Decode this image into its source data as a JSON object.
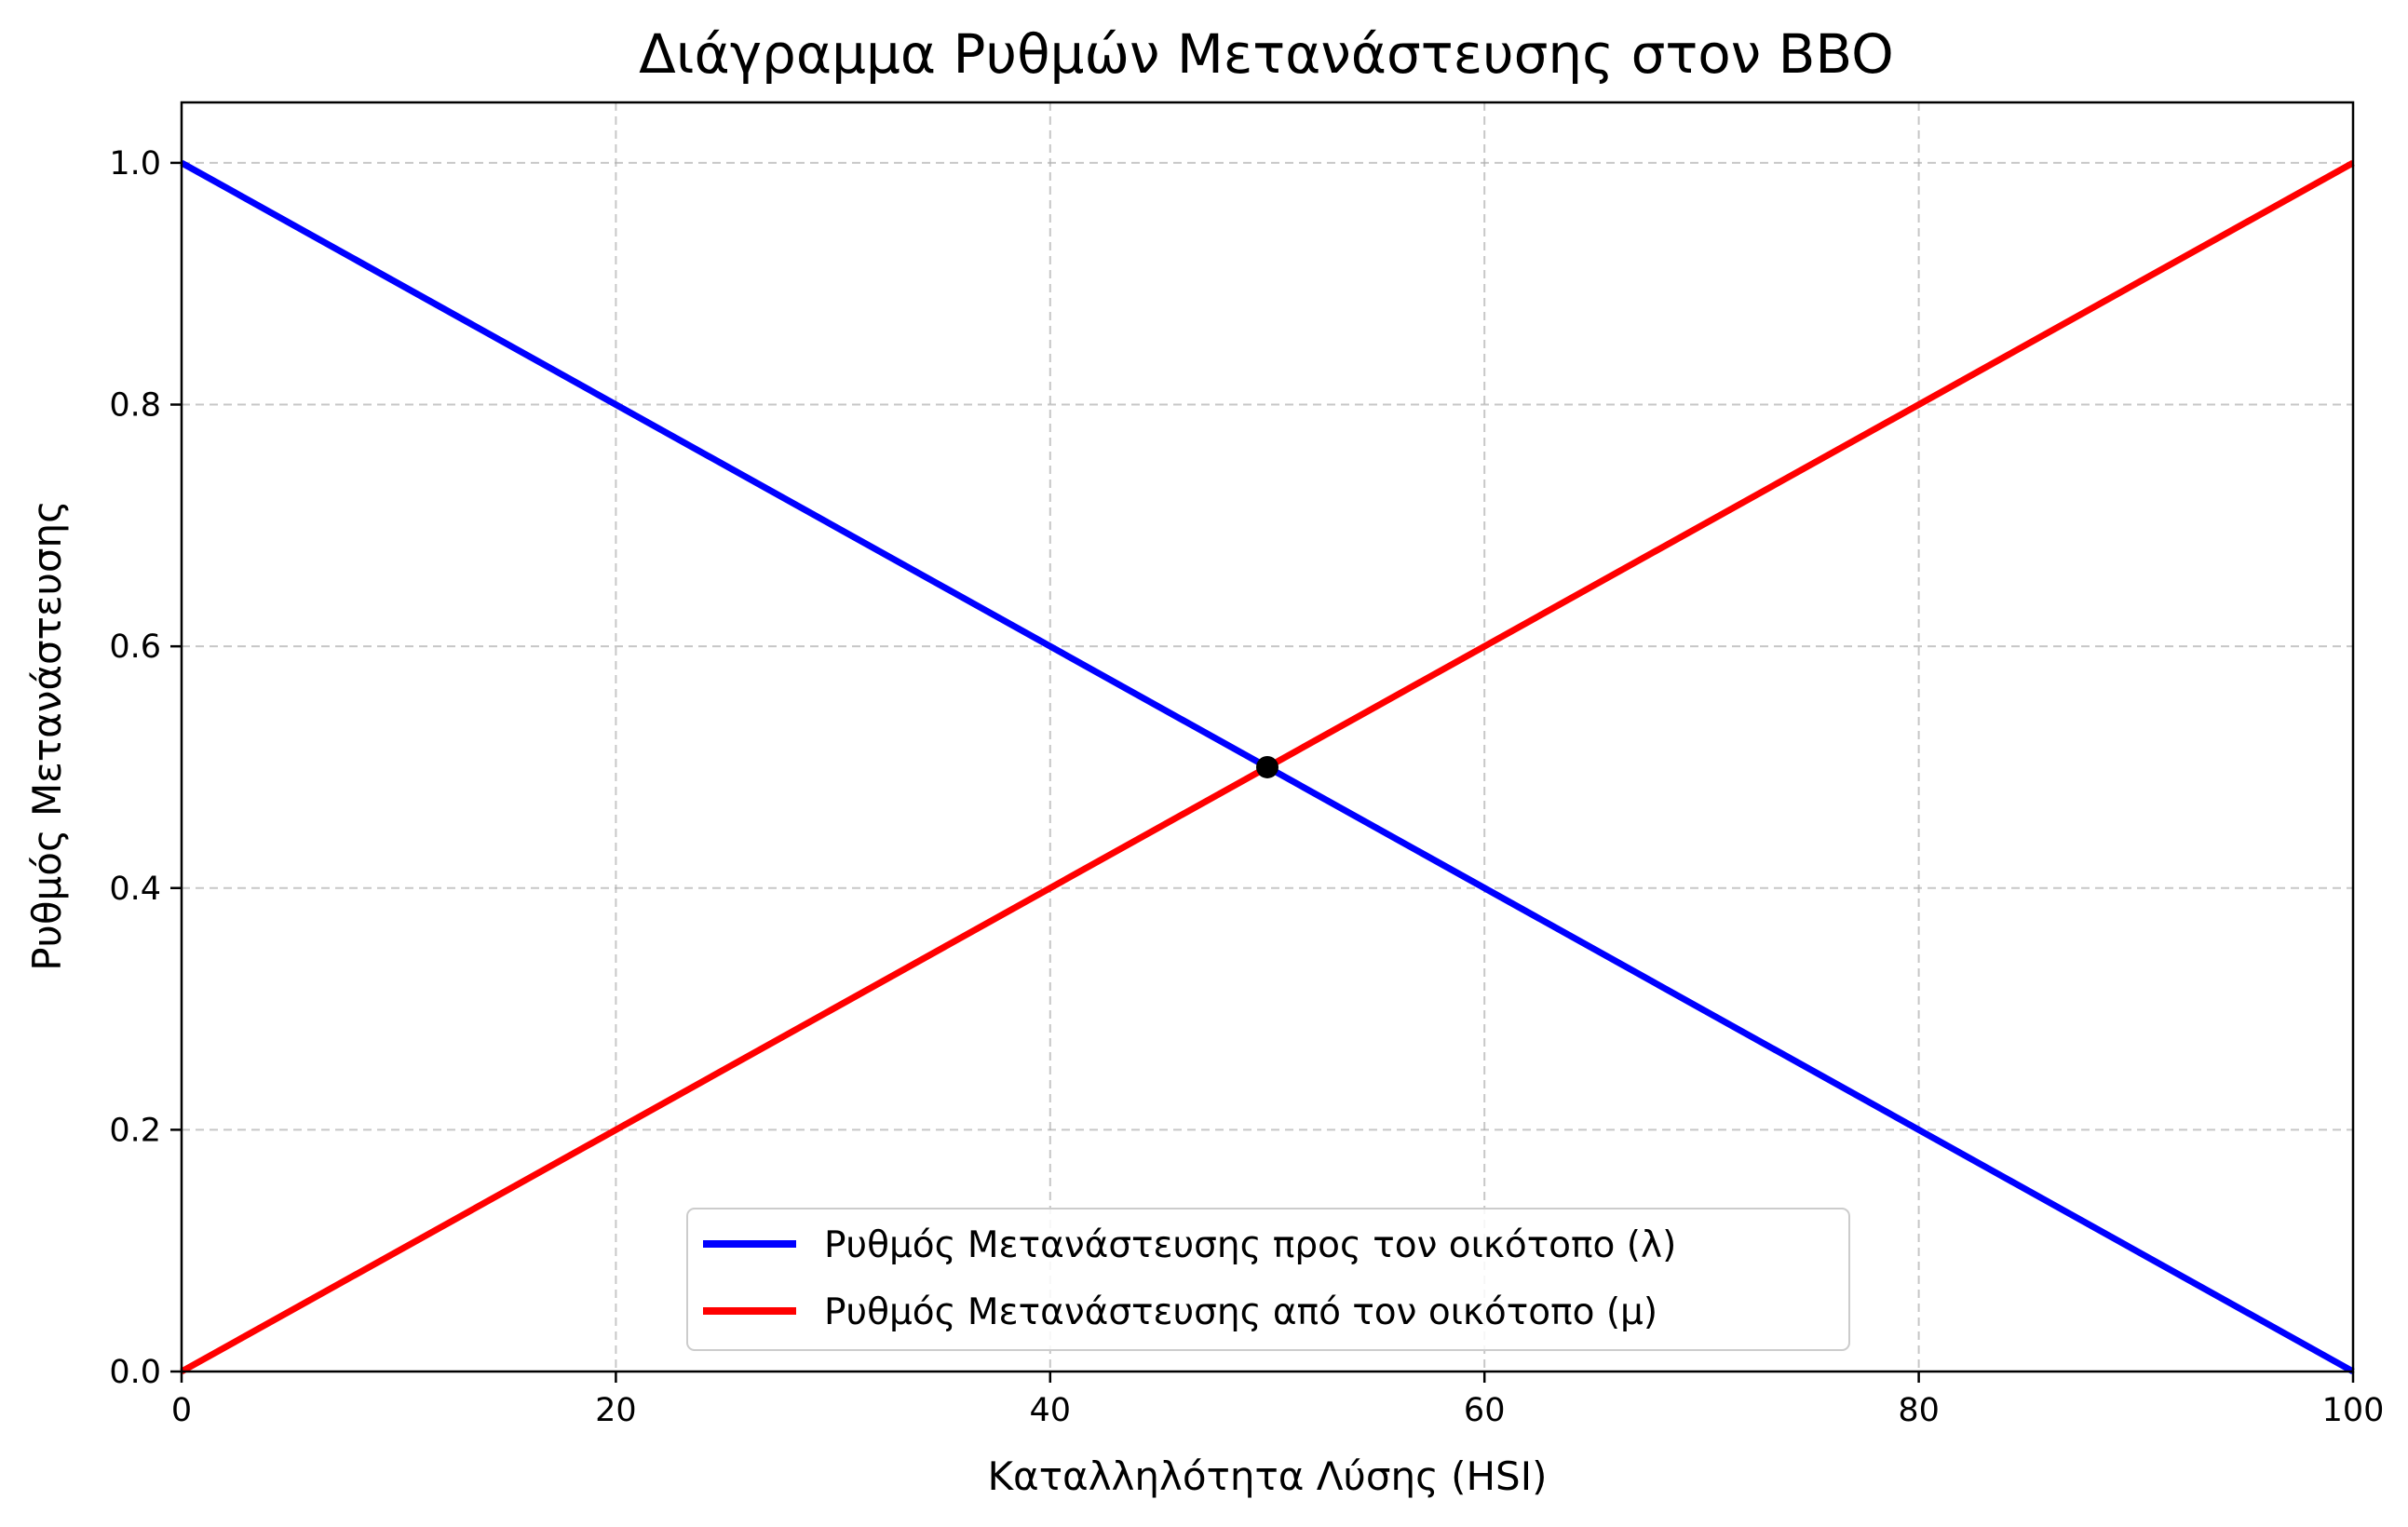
{
  "chart_data": {
    "type": "line",
    "title": "Διάγραμμα Ρυθμών Μετανάστευσης στον BBO",
    "xlabel": "Καταλληλότητα Λύσης (HSI)",
    "ylabel": "Ρυθμός Μετανάστευσης",
    "xlim": [
      0,
      100
    ],
    "ylim": [
      0,
      1.05
    ],
    "xticks": [
      0,
      20,
      40,
      60,
      80,
      100
    ],
    "xtick_labels": [
      "0",
      "20",
      "40",
      "60",
      "80",
      "100"
    ],
    "yticks": [
      0.0,
      0.2,
      0.4,
      0.6,
      0.8,
      1.0
    ],
    "ytick_labels": [
      "0.0",
      "0.2",
      "0.4",
      "0.6",
      "0.8",
      "1.0"
    ],
    "grid": true,
    "legend_position": "lower-center",
    "series": [
      {
        "name": "Ρυθμός Μετανάστευσης προς τον οικότοπο (λ)",
        "color": "#0000ff",
        "x": [
          0,
          100
        ],
        "y": [
          1.0,
          0.0
        ]
      },
      {
        "name": "Ρυθμός Μετανάστευσης από τον οικότοπο (μ)",
        "color": "#ff0000",
        "x": [
          0,
          100
        ],
        "y": [
          0.0,
          1.0
        ]
      }
    ],
    "points": [
      {
        "name": "intersection",
        "x": 50,
        "y": 0.5,
        "color": "#000000"
      }
    ]
  }
}
